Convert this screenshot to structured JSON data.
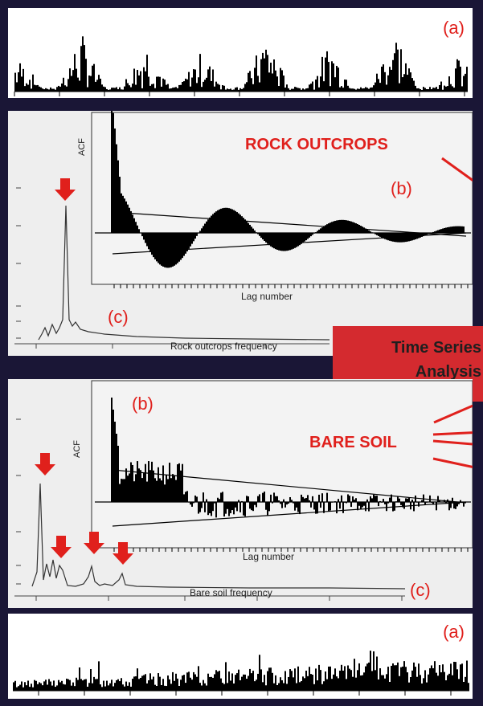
{
  "panel_a_top": {
    "label": "(a)"
  },
  "panel_rock": {
    "title": "ROCK OUTCROPS",
    "label_b": "(b)",
    "label_c": "(c)",
    "acf_axis": "ACF",
    "lag_axis": "Lag number",
    "freq_axis": "Rock outcrops frequency"
  },
  "tsa_box": {
    "line1": "Time Series",
    "line2": "Analysis"
  },
  "panel_soil": {
    "title": "BARE SOIL",
    "label_b": "(b)",
    "label_c": "(c)",
    "acf_axis": "ACF",
    "lag_axis": "Lag number",
    "freq_axis": "Bare soil frequency"
  },
  "panel_a_bottom": {
    "label": "(a)"
  },
  "colors": {
    "background": "#1a1636",
    "accent_red": "#e0201c",
    "box_red": "#d42a2f"
  }
}
